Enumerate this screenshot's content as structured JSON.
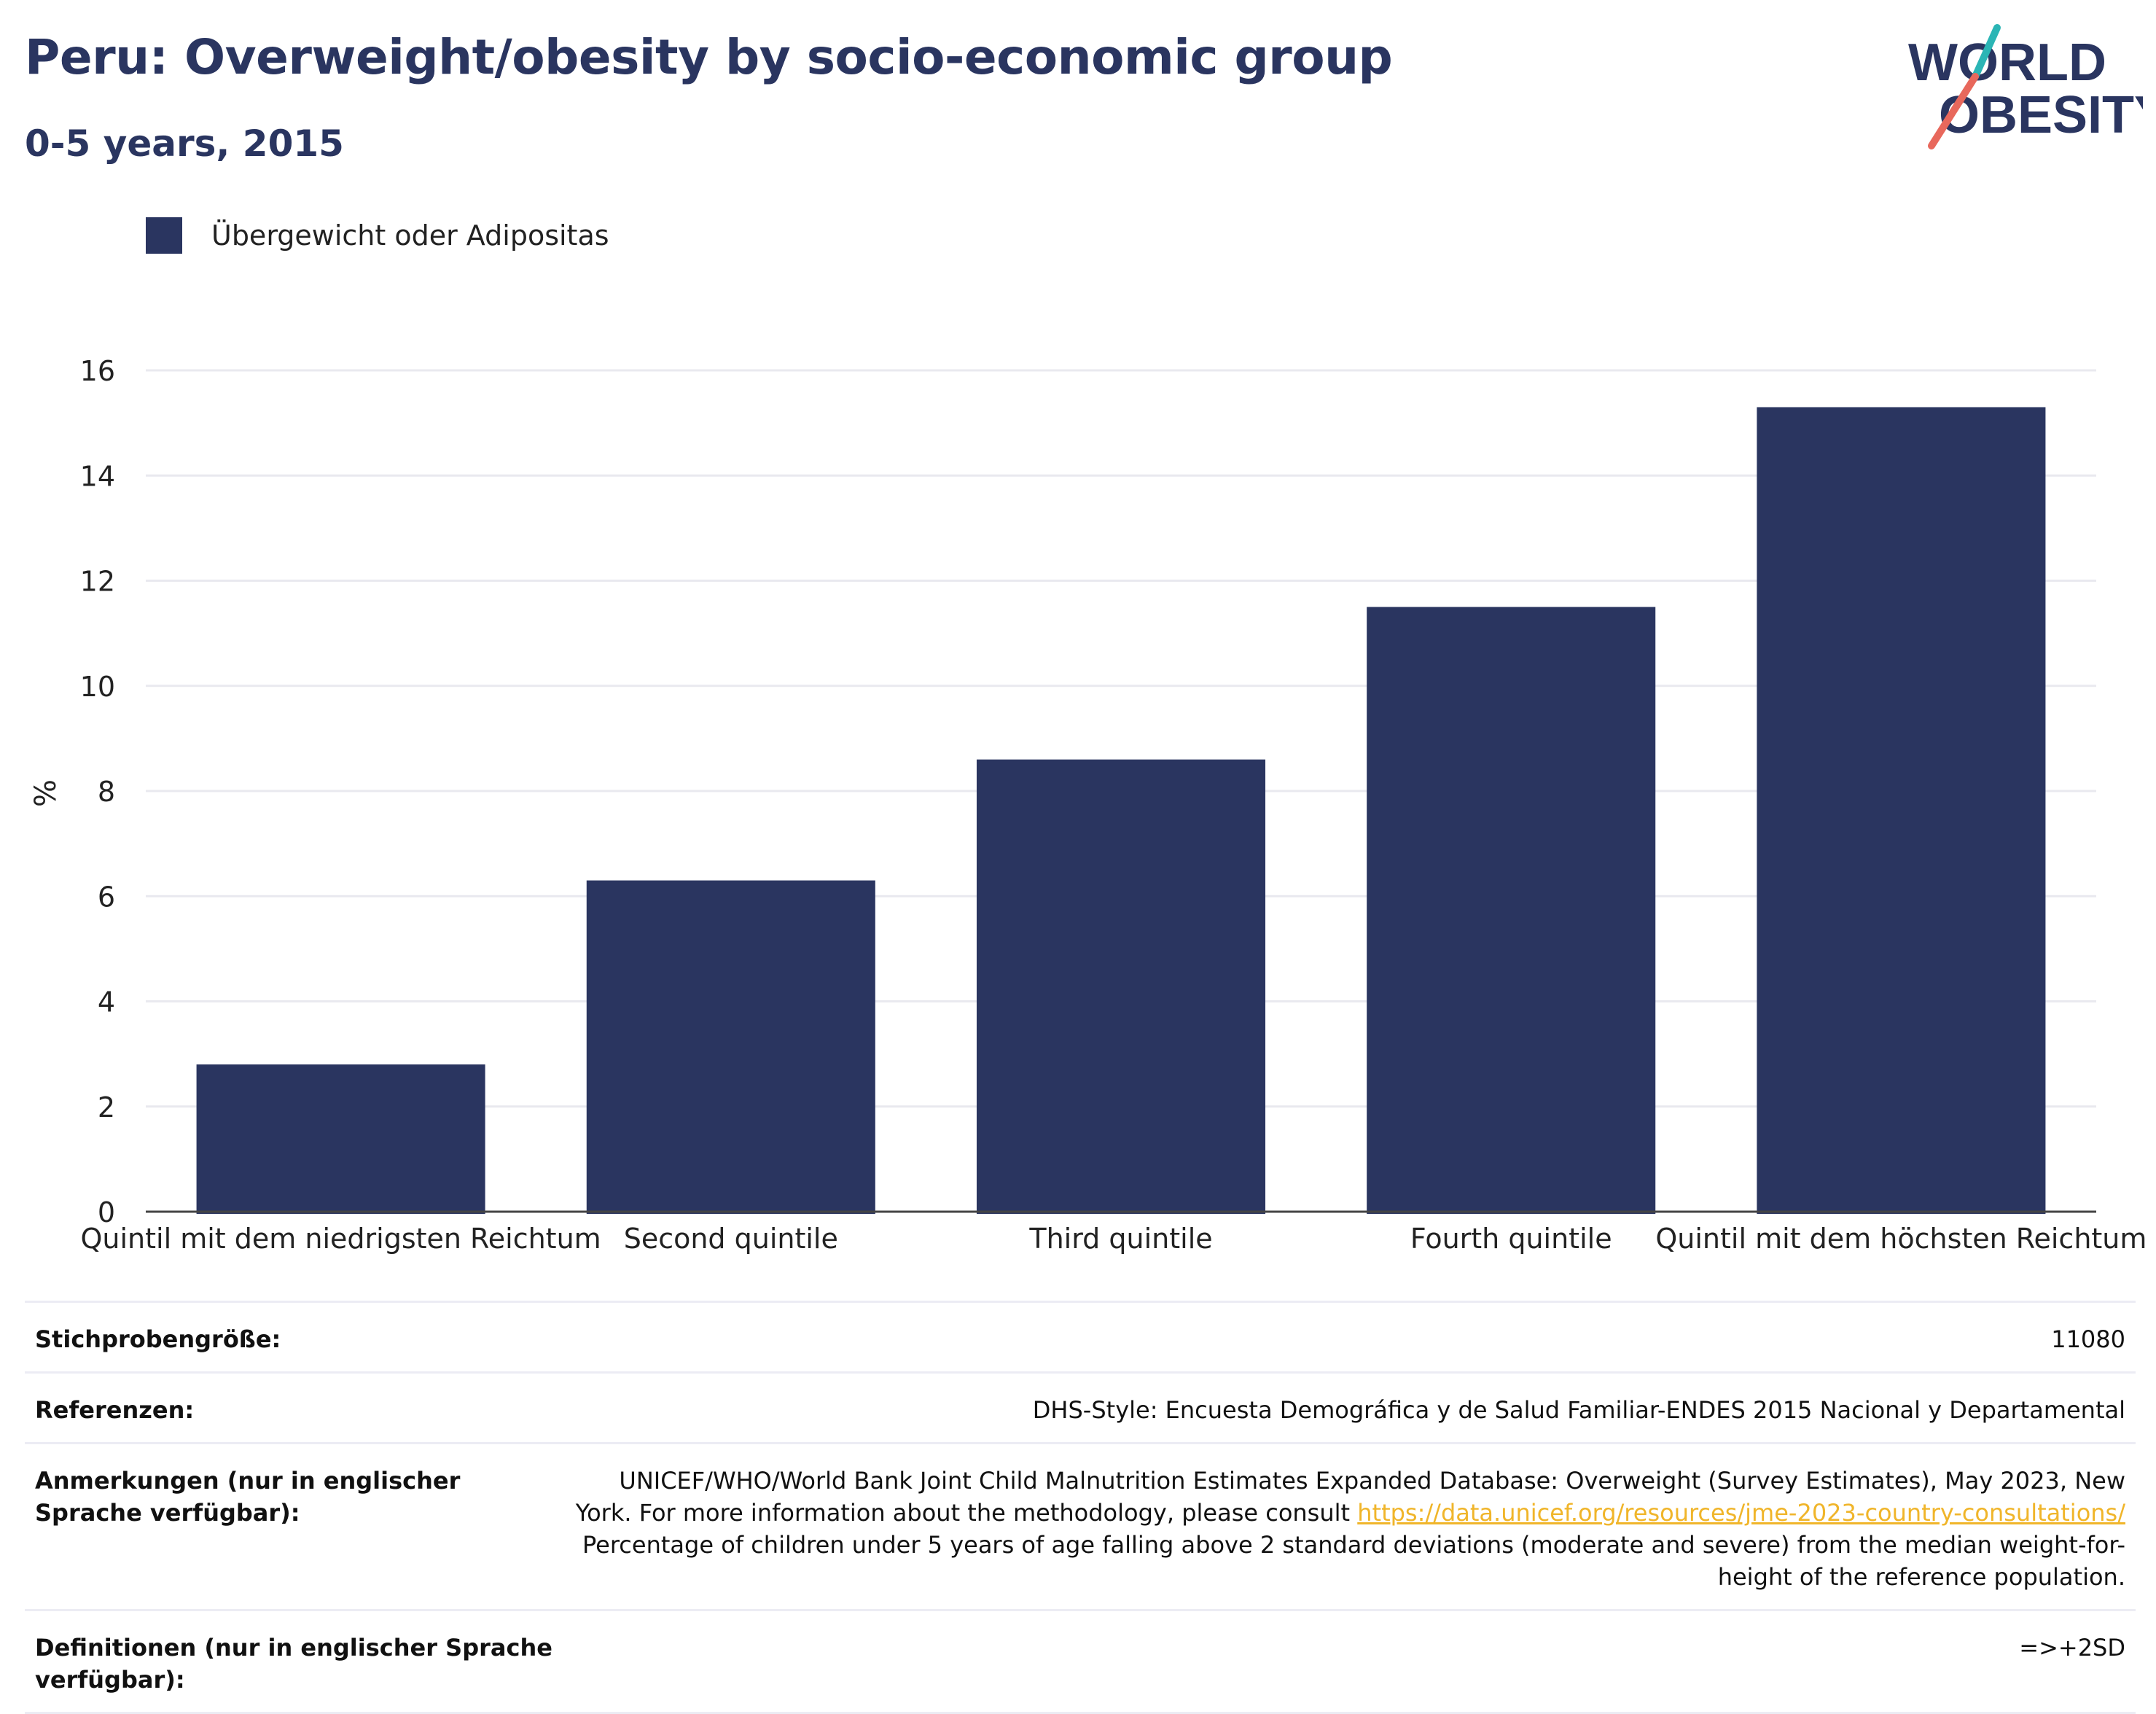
{
  "title": "Peru: Overweight/obesity by socio-economic group",
  "subtitle": "0-5 years, 2015",
  "logo": {
    "line1": "WORLD",
    "line2": "OBESITY",
    "colors": {
      "navy": "#2a3560",
      "teal": "#2bb5b5",
      "coral": "#e8685c"
    }
  },
  "legend": {
    "label": "Übergewicht oder Adipositas",
    "color": "#2a3560"
  },
  "chart_data": {
    "type": "bar",
    "categories": [
      "Quintil mit dem niedrigsten Reichtum",
      "Second quintile",
      "Third quintile",
      "Fourth quintile",
      "Quintil mit dem höchsten Reichtum"
    ],
    "series": [
      {
        "name": "Übergewicht oder Adipositas",
        "values": [
          2.8,
          6.3,
          8.6,
          11.5,
          15.3
        ],
        "color": "#2a3560"
      }
    ],
    "ylabel": "%",
    "ylim": [
      0,
      16
    ],
    "yticks": [
      "0",
      "2",
      "4",
      "6",
      "8",
      "10",
      "12",
      "14",
      "16"
    ],
    "grid": true,
    "legend_position": "top-left"
  },
  "meta": {
    "sample_label": "Stichprobengröße:",
    "sample_value": "11080",
    "references_label": "Referenzen:",
    "references_value": "DHS-Style: Encuesta Demográfica y de Salud Familiar-ENDES 2015 Nacional y Departamental",
    "notes_label": "Anmerkungen (nur in englischer Sprache verfügbar):",
    "notes_text_1": "UNICEF/WHO/World Bank Joint Child Malnutrition Estimates Expanded Database: Overweight (Survey Estimates), May 2023, New York. For more information about the methodology, please consult",
    "notes_link": "https://data.unicef.org/resources/jme-2023-country-consultations/",
    "notes_text_2": "Percentage of children under 5 years of age falling above 2 standard deviations (moderate and severe) from the median weight-for-height of the reference population.",
    "definitions_label": "Definitionen (nur in englischer Sprache verfügbar):",
    "definitions_value": "=>+2SD"
  }
}
